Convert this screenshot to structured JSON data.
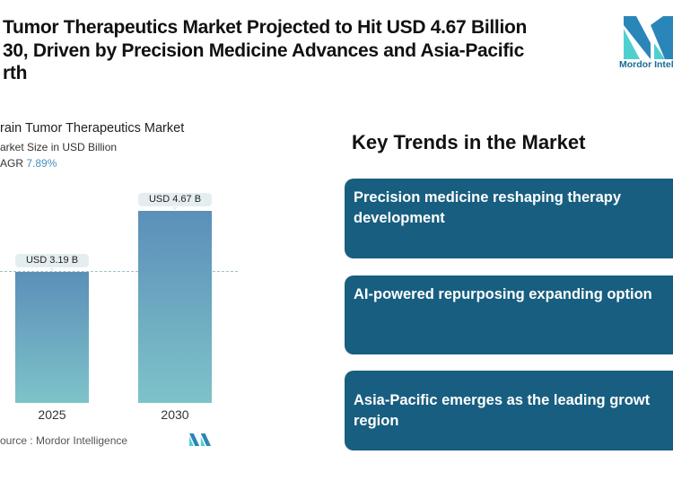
{
  "header": {
    "title_lines": [
      "Tumor Therapeutics Market Projected to Hit USD 4.67 Billion",
      "30, Driven by Precision Medicine Advances and Asia-Pacific",
      "rth"
    ],
    "logo_text": "Mordor Intel"
  },
  "chart_data": {
    "type": "bar",
    "title": "rain Tumor Therapeutics Market",
    "subtitle": "arket Size in USD Billion",
    "cagr_label": "AGR",
    "cagr_value": "7.89%",
    "categories": [
      "2025",
      "2030"
    ],
    "values": [
      3.19,
      4.67
    ],
    "data_labels": [
      "USD 3.19 B",
      "USD 4.67 B"
    ],
    "ylim": [
      0,
      4.67
    ],
    "reference_line": 3.19,
    "source": "ource :  Mordor Intelligence",
    "colors": {
      "bar_top": "#5b8fb9",
      "bar_bottom": "#7ec3c9"
    }
  },
  "trends": {
    "heading": "Key Trends in the Market",
    "items": [
      "Precision medicine reshaping therapy\ndevelopment",
      "AI-powered repurposing expanding option",
      "Asia-Pacific emerges as the leading growt\nregion"
    ],
    "card_color": "#185e80"
  }
}
